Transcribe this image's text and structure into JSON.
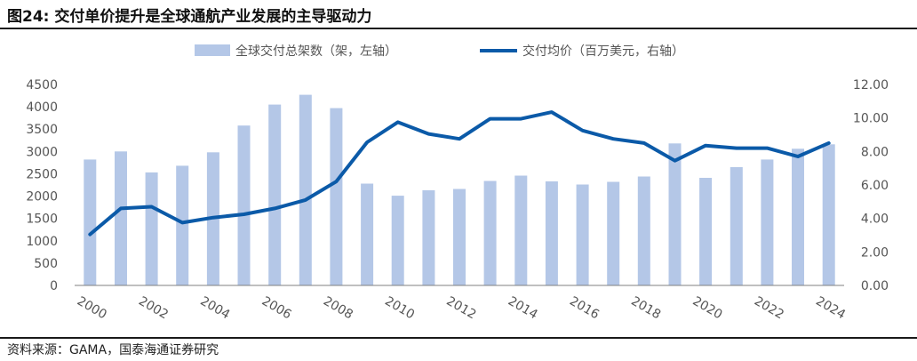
{
  "figure": {
    "title": "图24:  交付单价提升是全球通航产业发展的主导驱动力",
    "source": "资料来源：GAMA，国泰海通证券研究"
  },
  "legend": {
    "bar_label": "全球交付总架数（架，左轴）",
    "line_label": "交付均价（百万美元，右轴）"
  },
  "colors": {
    "bar": "#b4c7e7",
    "line": "#0b5aa8",
    "axis": "#808080"
  },
  "chart_data": {
    "type": "bar+line",
    "x": [
      2000,
      2001,
      2002,
      2003,
      2004,
      2005,
      2006,
      2007,
      2008,
      2009,
      2010,
      2011,
      2012,
      2013,
      2014,
      2015,
      2016,
      2017,
      2018,
      2019,
      2020,
      2021,
      2022,
      2023,
      2024
    ],
    "xtick_labels": [
      "2000",
      "2002",
      "2004",
      "2006",
      "2008",
      "2010",
      "2012",
      "2014",
      "2016",
      "2018",
      "2020",
      "2022",
      "2024"
    ],
    "series": [
      {
        "name": "全球交付总架数（架，左轴）",
        "type": "bar",
        "axis": "left",
        "values": [
          2820,
          3000,
          2530,
          2680,
          2980,
          3580,
          4050,
          4270,
          3970,
          2280,
          2010,
          2130,
          2160,
          2340,
          2460,
          2330,
          2260,
          2320,
          2440,
          3180,
          2410,
          2650,
          2820,
          3060,
          3160
        ]
      },
      {
        "name": "交付均价（百万美元，右轴）",
        "type": "line",
        "axis": "right",
        "values": [
          3.05,
          4.6,
          4.7,
          3.75,
          4.05,
          4.25,
          4.6,
          5.1,
          6.2,
          8.55,
          9.75,
          9.05,
          8.75,
          9.95,
          9.95,
          10.35,
          9.25,
          8.75,
          8.5,
          7.45,
          8.35,
          8.2,
          8.2,
          7.7,
          8.5
        ]
      }
    ],
    "y_left": {
      "min": 0,
      "max": 4500,
      "ticks": [
        "0",
        "500",
        "1000",
        "1500",
        "2000",
        "2500",
        "3000",
        "3500",
        "4000",
        "4500"
      ]
    },
    "y_right": {
      "min": 0,
      "max": 12,
      "ticks": [
        "0.00",
        "2.00",
        "4.00",
        "6.00",
        "8.00",
        "10.00",
        "12.00"
      ]
    },
    "grid": false,
    "legend_position": "top"
  }
}
